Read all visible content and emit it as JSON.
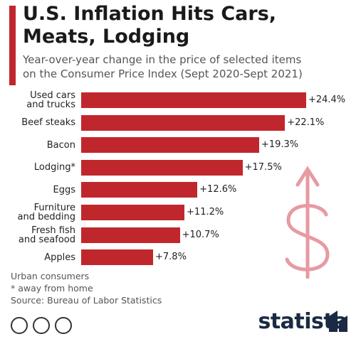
{
  "chart_data": {
    "type": "bar",
    "orientation": "horizontal",
    "title": "U.S. Inflation Hits Cars, Meats, Lodging",
    "subtitle": "Year-over-year change in the price of selected items on the Consumer Price Index (Sept 2020-Sept 2021)",
    "categories": [
      "Used cars and trucks",
      "Beef steaks",
      "Bacon",
      "Lodging*",
      "Eggs",
      "Furniture and bedding",
      "Fresh fish and seafood",
      "Apples"
    ],
    "values": [
      24.4,
      22.1,
      19.3,
      17.5,
      12.6,
      11.2,
      10.7,
      7.8
    ],
    "value_labels": [
      "+24.4%",
      "+22.1%",
      "+19.3%",
      "+17.5%",
      "+12.6%",
      "+11.2%",
      "+10.7%",
      "+7.8%"
    ],
    "color": "#c0272d",
    "notes": [
      "Urban consumers",
      "* away from home"
    ],
    "source": "Source: Bureau of Labor Statistics",
    "brand": "statista"
  }
}
